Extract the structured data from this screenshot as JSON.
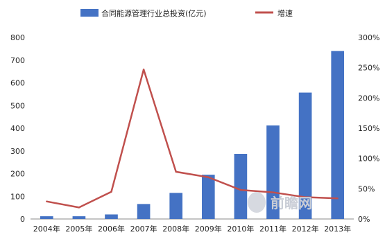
{
  "chart_data": {
    "type": "bar",
    "categories": [
      "2004年",
      "2005年",
      "2006年",
      "2007年",
      "2008年",
      "2009年",
      "2010年",
      "2011年",
      "2012年",
      "2013年"
    ],
    "series": [
      {
        "name": "合同能源管理行业总投资(亿元)",
        "type": "bar",
        "axis": "left",
        "color": "#4472c4",
        "values": [
          12,
          12,
          20,
          66,
          115,
          195,
          287,
          412,
          557,
          740
        ]
      },
      {
        "name": "增速",
        "type": "line",
        "axis": "right",
        "color": "#c0504d",
        "values": [
          29,
          19,
          45,
          247,
          78,
          69,
          48,
          44,
          36,
          34
        ]
      }
    ],
    "y_left": {
      "min": 0,
      "max": 800,
      "ticks": [
        0,
        100,
        200,
        300,
        400,
        500,
        600,
        700,
        800
      ]
    },
    "y_right": {
      "min": 0,
      "max": 300,
      "ticks": [
        "0%",
        "50%",
        "100%",
        "150%",
        "200%",
        "250%",
        "300%"
      ]
    },
    "legend_position": "top",
    "grid": false,
    "title": "",
    "xlabel": "",
    "ylabel": ""
  },
  "watermark": {
    "text": "前瞻网"
  }
}
